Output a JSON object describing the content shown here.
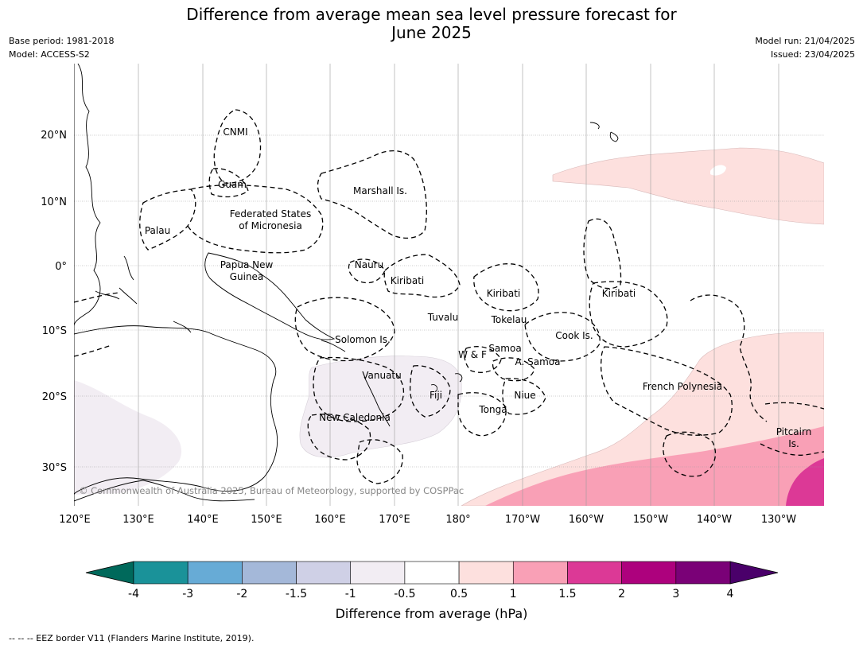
{
  "title_line1": "Difference from average mean sea level pressure forecast for",
  "title_line2": "June 2025",
  "meta_left": [
    "Base period: 1981-2018",
    "Model: ACCESS-S2"
  ],
  "meta_right": [
    "Model run: 21/04/2025",
    "Issued: 23/04/2025"
  ],
  "map": {
    "lon_ticks": [
      "120°E",
      "130°E",
      "140°E",
      "150°E",
      "160°E",
      "170°E",
      "180°",
      "170°W",
      "160°W",
      "150°W",
      "140°W",
      "130°W"
    ],
    "lat_ticks": [
      "20°N",
      "10°N",
      "0°",
      "10°S",
      "20°S",
      "30°S"
    ],
    "copyright": "© Commonwealth of Australia 2025, Bureau of Meteorology, supported by COSPPac",
    "places": [
      {
        "name": "CNMI"
      },
      {
        "name": "Guam"
      },
      {
        "name": "Palau"
      },
      {
        "name": "Federated States",
        "name2": "of Micronesia"
      },
      {
        "name": "Marshall Is."
      },
      {
        "name": "Papua New",
        "name2": "Guinea"
      },
      {
        "name": "Nauru"
      },
      {
        "name": "Kiribati"
      },
      {
        "name": "Kiribati"
      },
      {
        "name": "Kiribati"
      },
      {
        "name": "Tuvalu"
      },
      {
        "name": "Tokelau"
      },
      {
        "name": "Solomon Is."
      },
      {
        "name": "Samoa"
      },
      {
        "name": "W & F"
      },
      {
        "name": "A. Samoa"
      },
      {
        "name": "Cook Is."
      },
      {
        "name": "Vanuatu"
      },
      {
        "name": "Fiji"
      },
      {
        "name": "Niue"
      },
      {
        "name": "Tonga"
      },
      {
        "name": "French Polynesia"
      },
      {
        "name": "New Caledonia"
      },
      {
        "name": "Pitcairn",
        "name2": "Is."
      }
    ]
  },
  "colorbar": {
    "ticks": [
      "-4",
      "-3",
      "-2",
      "-1.5",
      "-1",
      "-0.5",
      "0.5",
      "1",
      "1.5",
      "2",
      "3",
      "4"
    ],
    "colors": [
      "#1a9299",
      "#67abd6",
      "#a4b8d9",
      "#cfd0e6",
      "#f2edf3",
      "#ffffff",
      "#fde0de",
      "#f9a0b6",
      "#dc3996",
      "#ad017d",
      "#7a0177"
    ],
    "low_extend_color": "#00695b",
    "high_extend_color": "#4a006a",
    "label": "Difference from average (hPa)"
  },
  "footnote": "--  --  -- EEZ border V11 (Flanders Marine Institute, 2019)."
}
